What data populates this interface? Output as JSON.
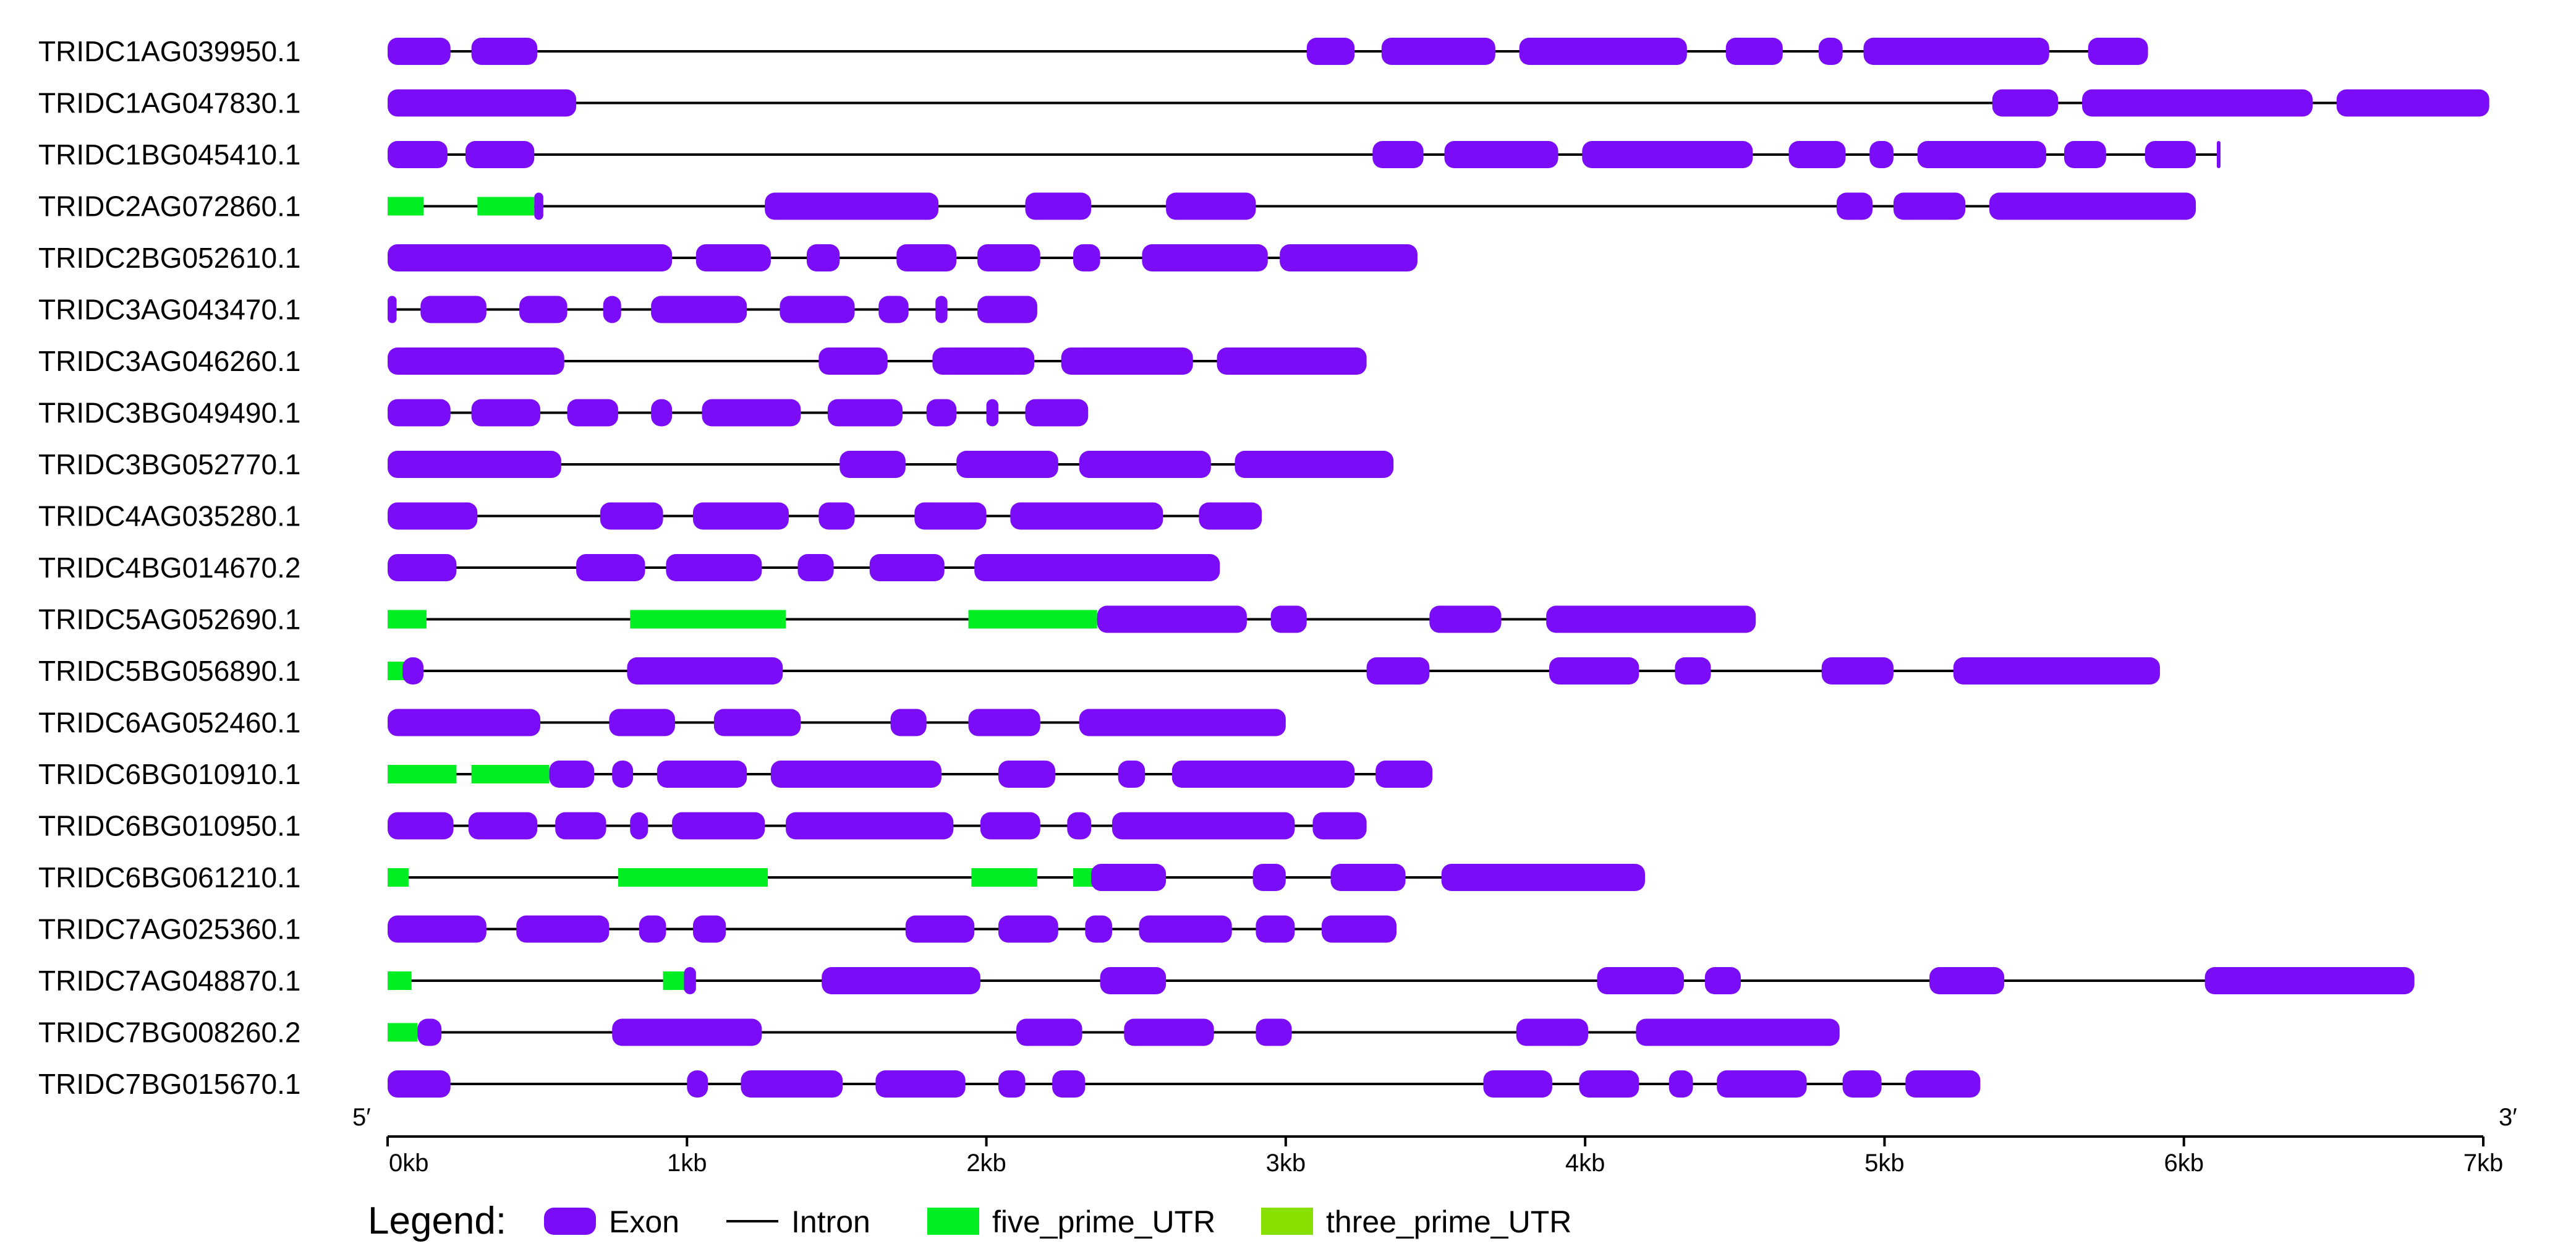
{
  "colors": {
    "exon": "#7b0cf7",
    "intron": "#000000",
    "five_prime_utr": "#00ee22",
    "three_prime_utr": "#88e000"
  },
  "axis": {
    "unit": "kb",
    "min": 0,
    "max": 7,
    "ticks": [
      "0kb",
      "1kb",
      "2kb",
      "3kb",
      "4kb",
      "5kb",
      "6kb",
      "7kb"
    ],
    "five_prime_label": "5′",
    "three_prime_label": "3′"
  },
  "legend": {
    "title": "Legend:",
    "items": [
      {
        "label": "Exon",
        "type": "exon"
      },
      {
        "label": "Intron",
        "type": "intron"
      },
      {
        "label": "five_prime_UTR",
        "type": "five_prime_utr"
      },
      {
        "label": "three_prime_UTR",
        "type": "three_prime_utr"
      }
    ]
  },
  "chart_data": {
    "type": "gene-structure",
    "genes": [
      {
        "name": "TRIDC1AG039950.1",
        "start": 0,
        "end": 5.86,
        "exons": [
          [
            0,
            0.21
          ],
          [
            0.28,
            0.5
          ],
          [
            3.07,
            3.23
          ],
          [
            3.32,
            3.7
          ],
          [
            3.78,
            4.34
          ],
          [
            4.47,
            4.66
          ],
          [
            4.78,
            4.86
          ],
          [
            4.93,
            5.55
          ],
          [
            5.68,
            5.88
          ]
        ],
        "utr5": [],
        "utr3": []
      },
      {
        "name": "TRIDC1AG047830.1",
        "start": 0,
        "end": 7.0,
        "exons": [
          [
            0,
            0.63
          ],
          [
            5.36,
            5.58
          ],
          [
            5.66,
            6.43
          ],
          [
            6.51,
            7.02
          ]
        ],
        "utr5": [],
        "utr3": []
      },
      {
        "name": "TRIDC1BG045410.1",
        "start": 0,
        "end": 6.12,
        "exons": [
          [
            0,
            0.2
          ],
          [
            0.26,
            0.49
          ],
          [
            3.29,
            3.46
          ],
          [
            3.53,
            3.91
          ],
          [
            3.99,
            4.56
          ],
          [
            4.68,
            4.87
          ],
          [
            4.95,
            5.03
          ],
          [
            5.11,
            5.54
          ],
          [
            5.6,
            5.74
          ],
          [
            5.87,
            6.04
          ],
          [
            6.11,
            6.12
          ]
        ],
        "utr5": [],
        "utr3": []
      },
      {
        "name": "TRIDC2AG072860.1",
        "start": 0,
        "end": 6.02,
        "exons": [
          [
            0.49,
            0.52
          ],
          [
            1.26,
            1.84
          ],
          [
            2.13,
            2.35
          ],
          [
            2.6,
            2.9
          ],
          [
            4.84,
            4.96
          ],
          [
            5.03,
            5.27
          ],
          [
            5.35,
            6.04
          ]
        ],
        "utr5": [
          [
            0,
            0.12
          ],
          [
            0.3,
            0.49
          ]
        ],
        "utr3": []
      },
      {
        "name": "TRIDC2BG052610.1",
        "start": 0,
        "end": 3.43,
        "exons": [
          [
            0,
            0.95
          ],
          [
            1.03,
            1.28
          ],
          [
            1.4,
            1.51
          ],
          [
            1.7,
            1.9
          ],
          [
            1.97,
            2.18
          ],
          [
            2.29,
            2.38
          ],
          [
            2.52,
            2.94
          ],
          [
            2.98,
            3.44
          ]
        ],
        "utr5": [],
        "utr3": []
      },
      {
        "name": "TRIDC3AG043470.1",
        "start": 0,
        "end": 2.16,
        "exons": [
          [
            0,
            0.03
          ],
          [
            0.11,
            0.33
          ],
          [
            0.44,
            0.6
          ],
          [
            0.72,
            0.78
          ],
          [
            0.88,
            1.2
          ],
          [
            1.31,
            1.56
          ],
          [
            1.64,
            1.74
          ],
          [
            1.83,
            1.87
          ],
          [
            1.97,
            2.17
          ]
        ],
        "utr5": [],
        "utr3": []
      },
      {
        "name": "TRIDC3AG046260.1",
        "start": 0,
        "end": 3.26,
        "exons": [
          [
            0,
            0.59
          ],
          [
            1.44,
            1.67
          ],
          [
            1.82,
            2.16
          ],
          [
            2.25,
            2.69
          ],
          [
            2.77,
            3.27
          ]
        ],
        "utr5": [],
        "utr3": []
      },
      {
        "name": "TRIDC3BG049490.1",
        "start": 0,
        "end": 2.33,
        "exons": [
          [
            0,
            0.21
          ],
          [
            0.28,
            0.51
          ],
          [
            0.6,
            0.77
          ],
          [
            0.88,
            0.95
          ],
          [
            1.05,
            1.38
          ],
          [
            1.47,
            1.72
          ],
          [
            1.8,
            1.9
          ],
          [
            2.0,
            2.04
          ],
          [
            2.13,
            2.34
          ]
        ],
        "utr5": [],
        "utr3": []
      },
      {
        "name": "TRIDC3BG052770.1",
        "start": 0,
        "end": 3.35,
        "exons": [
          [
            0,
            0.58
          ],
          [
            1.51,
            1.73
          ],
          [
            1.9,
            2.24
          ],
          [
            2.31,
            2.75
          ],
          [
            2.83,
            3.36
          ]
        ],
        "utr5": [],
        "utr3": []
      },
      {
        "name": "TRIDC4AG035280.1",
        "start": 0,
        "end": 2.91,
        "exons": [
          [
            0,
            0.3
          ],
          [
            0.71,
            0.92
          ],
          [
            1.02,
            1.34
          ],
          [
            1.44,
            1.56
          ],
          [
            1.76,
            2.0
          ],
          [
            2.08,
            2.59
          ],
          [
            2.71,
            2.92
          ]
        ],
        "utr5": [],
        "utr3": []
      },
      {
        "name": "TRIDC4BG014670.2",
        "start": 0,
        "end": 2.77,
        "exons": [
          [
            0,
            0.23
          ],
          [
            0.63,
            0.86
          ],
          [
            0.93,
            1.25
          ],
          [
            1.37,
            1.49
          ],
          [
            1.61,
            1.86
          ],
          [
            1.96,
            2.78
          ]
        ],
        "utr5": [],
        "utr3": []
      },
      {
        "name": "TRIDC5AG052690.1",
        "start": 0,
        "end": 4.55,
        "exons": [
          [
            2.37,
            2.87
          ],
          [
            2.95,
            3.07
          ],
          [
            3.48,
            3.72
          ],
          [
            3.87,
            4.57
          ]
        ],
        "utr5": [
          [
            0,
            0.13
          ],
          [
            0.81,
            1.33
          ],
          [
            1.94,
            2.37
          ]
        ],
        "utr3": []
      },
      {
        "name": "TRIDC5BG056890.1",
        "start": 0,
        "end": 5.91,
        "exons": [
          [
            0.05,
            0.12
          ],
          [
            0.8,
            1.32
          ],
          [
            3.27,
            3.48
          ],
          [
            3.88,
            4.18
          ],
          [
            4.3,
            4.42
          ],
          [
            4.79,
            5.03
          ],
          [
            5.23,
            5.92
          ]
        ],
        "utr5": [
          [
            0,
            0.06
          ]
        ],
        "utr3": []
      },
      {
        "name": "TRIDC6AG052460.1",
        "start": 0,
        "end": 2.98,
        "exons": [
          [
            0,
            0.51
          ],
          [
            0.74,
            0.96
          ],
          [
            1.09,
            1.38
          ],
          [
            1.68,
            1.8
          ],
          [
            1.94,
            2.18
          ],
          [
            2.31,
            3.0
          ]
        ],
        "utr5": [],
        "utr3": []
      },
      {
        "name": "TRIDC6BG010910.1",
        "start": 0,
        "end": 3.47,
        "exons": [
          [
            0.54,
            0.69
          ],
          [
            0.75,
            0.82
          ],
          [
            0.9,
            1.2
          ],
          [
            1.28,
            1.85
          ],
          [
            2.04,
            2.23
          ],
          [
            2.44,
            2.53
          ],
          [
            2.62,
            3.23
          ],
          [
            3.3,
            3.49
          ]
        ],
        "utr5": [
          [
            0,
            0.23
          ],
          [
            0.28,
            0.54
          ]
        ],
        "utr3": []
      },
      {
        "name": "TRIDC6BG010950.1",
        "start": 0,
        "end": 3.25,
        "exons": [
          [
            0,
            0.22
          ],
          [
            0.27,
            0.5
          ],
          [
            0.56,
            0.73
          ],
          [
            0.81,
            0.87
          ],
          [
            0.95,
            1.26
          ],
          [
            1.33,
            1.89
          ],
          [
            1.98,
            2.18
          ],
          [
            2.27,
            2.35
          ],
          [
            2.42,
            3.03
          ],
          [
            3.09,
            3.27
          ]
        ],
        "utr5": [],
        "utr3": []
      },
      {
        "name": "TRIDC6BG061210.1",
        "start": 0,
        "end": 4.19,
        "exons": [
          [
            2.35,
            2.6
          ],
          [
            2.89,
            3.0
          ],
          [
            3.15,
            3.4
          ],
          [
            3.52,
            4.2
          ]
        ],
        "utr5": [
          [
            0,
            0.07
          ],
          [
            0.77,
            1.27
          ],
          [
            1.95,
            2.17
          ],
          [
            2.29,
            2.36
          ]
        ],
        "utr3": []
      },
      {
        "name": "TRIDC7AG025360.1",
        "start": 0,
        "end": 3.34,
        "exons": [
          [
            0,
            0.33
          ],
          [
            0.43,
            0.74
          ],
          [
            0.84,
            0.93
          ],
          [
            1.02,
            1.13
          ],
          [
            1.73,
            1.96
          ],
          [
            2.04,
            2.24
          ],
          [
            2.33,
            2.42
          ],
          [
            2.51,
            2.82
          ],
          [
            2.9,
            3.03
          ],
          [
            3.12,
            3.37
          ]
        ],
        "utr5": [],
        "utr3": []
      },
      {
        "name": "TRIDC7AG048870.1",
        "start": 0,
        "end": 6.75,
        "exons": [
          [
            0.99,
            1.03
          ],
          [
            1.45,
            1.98
          ],
          [
            2.38,
            2.6
          ],
          [
            4.04,
            4.33
          ],
          [
            4.4,
            4.52
          ],
          [
            5.15,
            5.4
          ],
          [
            6.07,
            6.77
          ]
        ],
        "utr5": [
          [
            0,
            0.08
          ],
          [
            0.92,
            1.0
          ]
        ],
        "utr3": []
      },
      {
        "name": "TRIDC7BG008260.2",
        "start": 0,
        "end": 4.84,
        "exons": [
          [
            0.1,
            0.18
          ],
          [
            0.75,
            1.25
          ],
          [
            2.1,
            2.32
          ],
          [
            2.46,
            2.76
          ],
          [
            2.9,
            3.02
          ],
          [
            3.77,
            4.01
          ],
          [
            4.17,
            4.85
          ]
        ],
        "utr5": [
          [
            0,
            0.1
          ]
        ],
        "utr3": []
      },
      {
        "name": "TRIDC7BG015670.1",
        "start": 0,
        "end": 5.3,
        "exons": [
          [
            0,
            0.21
          ],
          [
            1.0,
            1.07
          ],
          [
            1.18,
            1.52
          ],
          [
            1.63,
            1.93
          ],
          [
            2.04,
            2.13
          ],
          [
            2.22,
            2.33
          ],
          [
            3.66,
            3.89
          ],
          [
            3.98,
            4.18
          ],
          [
            4.28,
            4.36
          ],
          [
            4.44,
            4.74
          ],
          [
            4.86,
            4.99
          ],
          [
            5.07,
            5.32
          ]
        ],
        "utr5": [],
        "utr3": []
      }
    ]
  }
}
